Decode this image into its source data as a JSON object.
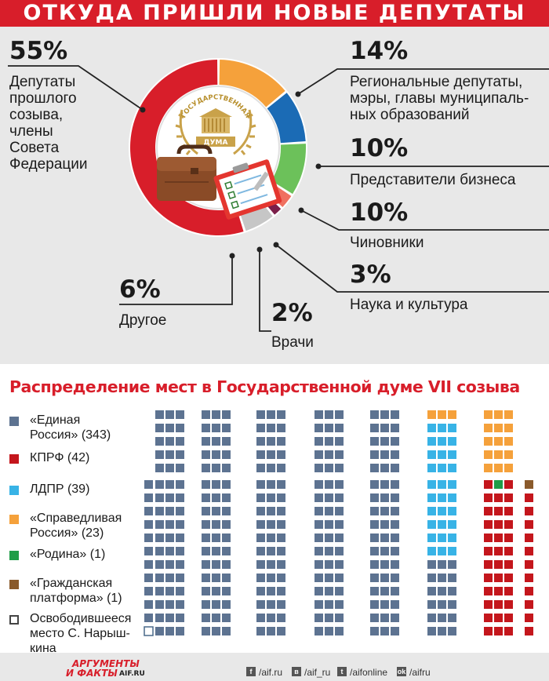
{
  "title": "ОТКУДА ПРИШЛИ НОВЫЕ ДЕПУТАТЫ",
  "emblem": {
    "text_top": "ГОСУДАРСТВЕННАЯ",
    "text_bottom": "ДУМА"
  },
  "chart_data": [
    {
      "type": "pie",
      "title": "ОТКУДА ПРИШЛИ НОВЫЕ ДЕПУТАТЫ",
      "slices": [
        {
          "value": 55,
          "pct": "55%",
          "label": "Депутаты прошлого созыва, члены Совета Федерации",
          "label_lines": [
            "Депутаты",
            "прошлого",
            "созыва,",
            "члены",
            "Совета",
            "Федерации"
          ],
          "color": "#d81e2a"
        },
        {
          "value": 14,
          "pct": "14%",
          "label": "Региональные депутаты, мэры, главы муниципальных образований",
          "label_lines": [
            "Региональные депутаты,",
            "мэры, главы муниципаль-",
            "ных образований"
          ],
          "color": "#f5a13b"
        },
        {
          "value": 10,
          "pct": "10%",
          "label": "Представители бизнеса",
          "label_lines": [
            "Представители бизнеса"
          ],
          "color": "#1b6bb5"
        },
        {
          "value": 10,
          "pct": "10%",
          "label": "Чиновники",
          "label_lines": [
            "Чиновники"
          ],
          "color": "#6cc15a"
        },
        {
          "value": 3,
          "pct": "3%",
          "label": "Наука и культура",
          "label_lines": [
            "Наука и культура"
          ],
          "color": "#f07060"
        },
        {
          "value": 2,
          "pct": "2%",
          "label": "Врачи",
          "label_lines": [
            "Врачи"
          ],
          "color": "#7b1f4a"
        },
        {
          "value": 6,
          "pct": "6%",
          "label": "Другое",
          "label_lines": [
            "Другое"
          ],
          "color": "#c6c6c6"
        }
      ]
    },
    {
      "type": "table",
      "title": "Распределение мест в Государственной думе VII созыва",
      "series": [
        {
          "name": "«Единая Россия» (343)",
          "value": 343,
          "color": "#5d7391"
        },
        {
          "name": "КПРФ (42)",
          "value": 42,
          "color": "#c4161c"
        },
        {
          "name": "ЛДПР (39)",
          "value": 39,
          "color": "#38b3e6"
        },
        {
          "name": "«Справедливая Россия» (23)",
          "value": 23,
          "color": "#f5a13b"
        },
        {
          "name": "«Родина» (1)",
          "value": 1,
          "color": "#1f9d47"
        },
        {
          "name": "«Гражданская платформа» (1)",
          "value": 1,
          "color": "#8a5a2b"
        },
        {
          "name": "Освободившееся место С. Нарышкина",
          "value": 1,
          "color": "#ffffff"
        }
      ]
    }
  ],
  "legend": [
    {
      "lines": [
        "«Единая",
        "Россия» (343)"
      ]
    },
    {
      "lines": [
        "КПРФ (42)"
      ]
    },
    {
      "lines": [
        "ЛДПР (39)"
      ]
    },
    {
      "lines": [
        "«Справедливая",
        "Россия» (23)"
      ]
    },
    {
      "lines": [
        "«Родина» (1)"
      ]
    },
    {
      "lines": [
        "«Гражданская",
        "платформа» (1)"
      ]
    },
    {
      "lines": [
        "Освободившееся",
        "место С. Нарыш-",
        "кина"
      ]
    }
  ],
  "footer": {
    "logo_top": "АРГУМЕНТЫ",
    "logo_bottom": "И ФАКТЫ",
    "logo_site": "AIF.RU",
    "links": [
      {
        "icon": "f",
        "text": "/aif.ru"
      },
      {
        "icon": "в",
        "text": "/aif_ru"
      },
      {
        "icon": "t",
        "text": "/aifonline"
      },
      {
        "icon": "ok",
        "text": "/aifru"
      }
    ]
  }
}
